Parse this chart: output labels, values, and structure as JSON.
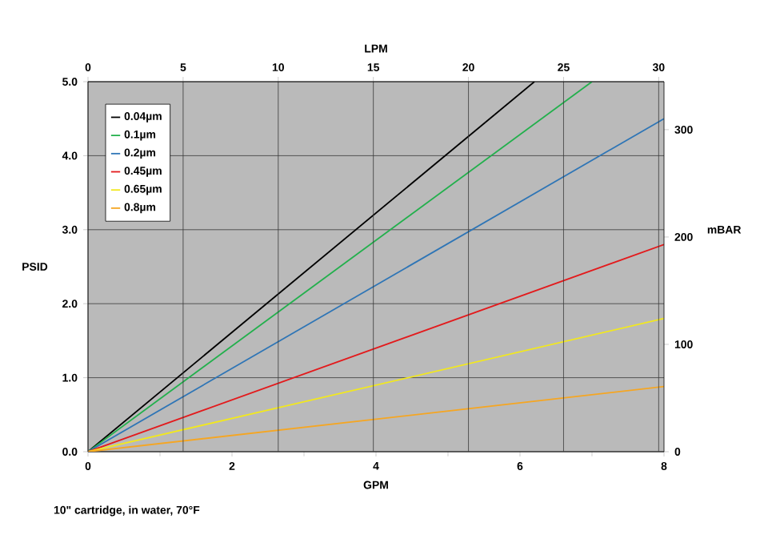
{
  "chart_data": {
    "type": "line",
    "xlabel": "GPM",
    "ylabel": "PSID",
    "x2label": "LPM",
    "y2label": "mBAR",
    "xlim": [
      0,
      8
    ],
    "xticks": [
      0,
      2,
      4,
      6,
      8
    ],
    "ylim": [
      0,
      5
    ],
    "yticks": [
      {
        "value": 0,
        "label": "0.0"
      },
      {
        "value": 1,
        "label": "1.0"
      },
      {
        "value": 2,
        "label": "2.0"
      },
      {
        "value": 3,
        "label": "3.0"
      },
      {
        "value": 4,
        "label": "4.0"
      },
      {
        "value": 5,
        "label": "5.0"
      }
    ],
    "x2lim": [
      0,
      30.28
    ],
    "x2ticks": [
      0,
      5,
      10,
      15,
      20,
      25,
      30
    ],
    "y2lim": [
      0,
      344.7
    ],
    "y2ticks": [
      0,
      100,
      200,
      300
    ],
    "grid": true,
    "legend": "top left",
    "marker": "none",
    "line_style": "solid",
    "annotations": [
      "10\" cartridge, in water, 70°F"
    ],
    "series": [
      {
        "name": "0.04µm",
        "color": "#000000",
        "x": [
          0,
          6.2
        ],
        "values": [
          0,
          5.0
        ]
      },
      {
        "name": "0.1µm",
        "color": "#22b04c",
        "x": [
          0,
          7.0
        ],
        "values": [
          0,
          5.0
        ]
      },
      {
        "name": "0.2µm",
        "color": "#2e75b6",
        "x": [
          0,
          8
        ],
        "values": [
          0,
          4.5
        ]
      },
      {
        "name": "0.45µm",
        "color": "#e31a1c",
        "x": [
          0,
          8
        ],
        "values": [
          0,
          2.8
        ]
      },
      {
        "name": "0.65µm",
        "color": "#f2e81e",
        "x": [
          0,
          8
        ],
        "values": [
          0,
          1.8
        ]
      },
      {
        "name": "0.8µm",
        "color": "#f5a623",
        "x": [
          0,
          8
        ],
        "values": [
          0,
          0.88
        ]
      }
    ]
  }
}
